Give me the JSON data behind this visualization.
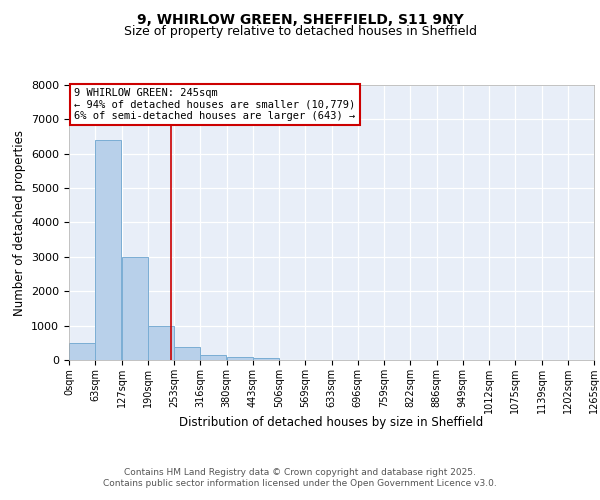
{
  "title_line1": "9, WHIRLOW GREEN, SHEFFIELD, S11 9NY",
  "title_line2": "Size of property relative to detached houses in Sheffield",
  "xlabel": "Distribution of detached houses by size in Sheffield",
  "ylabel": "Number of detached properties",
  "bin_edges": [
    0,
    63,
    127,
    190,
    253,
    316,
    380,
    443,
    506,
    569,
    633,
    696,
    759,
    822,
    886,
    949,
    1012,
    1075,
    1139,
    1202,
    1265
  ],
  "bar_heights": [
    500,
    6400,
    3000,
    1000,
    380,
    160,
    100,
    60,
    0,
    0,
    0,
    0,
    0,
    0,
    0,
    0,
    0,
    0,
    0,
    0
  ],
  "bar_color": "#b8d0ea",
  "bar_edge_color": "#7aadd4",
  "ylim": [
    0,
    8000
  ],
  "yticks": [
    0,
    1000,
    2000,
    3000,
    4000,
    5000,
    6000,
    7000,
    8000
  ],
  "property_size": 245,
  "red_line_color": "#cc0000",
  "annotation_line1": "9 WHIRLOW GREEN: 245sqm",
  "annotation_line2": "← 94% of detached houses are smaller (10,779)",
  "annotation_line3": "6% of semi-detached houses are larger (643) →",
  "footnote_line1": "Contains HM Land Registry data © Crown copyright and database right 2025.",
  "footnote_line2": "Contains public sector information licensed under the Open Government Licence v3.0.",
  "bg_color": "#e8eef8",
  "grid_color": "#ffffff",
  "title_fontsize": 10,
  "subtitle_fontsize": 9,
  "tick_fontsize": 7,
  "label_fontsize": 8.5,
  "annotation_fontsize": 7.5,
  "footnote_fontsize": 6.5
}
